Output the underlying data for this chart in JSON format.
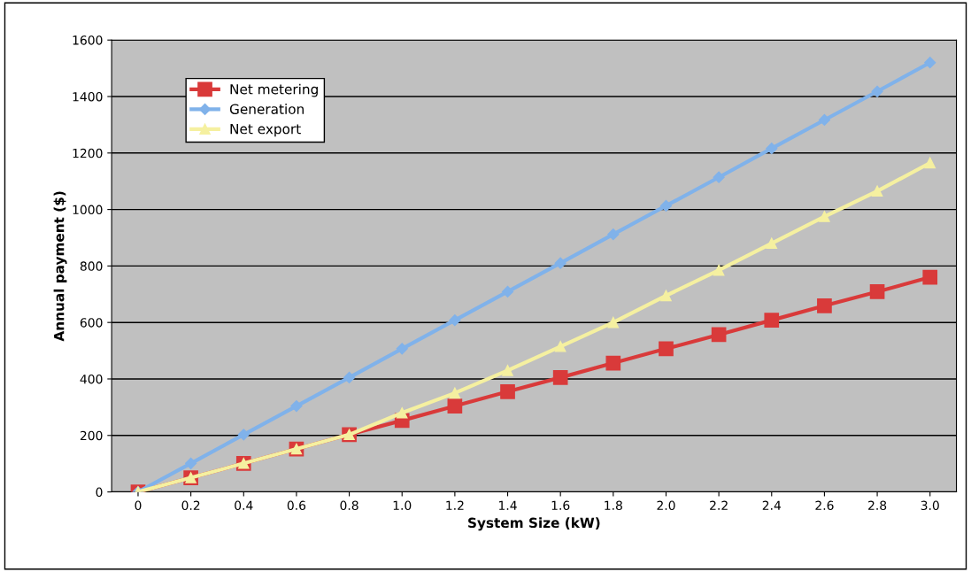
{
  "chart_data": {
    "type": "line",
    "xlabel": "System Size (kW)",
    "ylabel": "Annual payment ($)",
    "categories": [
      "0",
      "0.2",
      "0.4",
      "0.6",
      "0.8",
      "1.0",
      "1.2",
      "1.4",
      "1.6",
      "1.8",
      "2.0",
      "2.2",
      "2.4",
      "2.6",
      "2.8",
      "3.0"
    ],
    "series": [
      {
        "name": "Net metering",
        "color": "#d93a3a",
        "marker": "square",
        "values": [
          0,
          50,
          101,
          152,
          203,
          253,
          304,
          355,
          405,
          456,
          507,
          557,
          608,
          659,
          709,
          760
        ]
      },
      {
        "name": "Generation",
        "color": "#80b2ea",
        "marker": "diamond",
        "values": [
          0,
          101,
          203,
          304,
          405,
          507,
          608,
          709,
          810,
          912,
          1013,
          1114,
          1216,
          1317,
          1418,
          1520
        ]
      },
      {
        "name": "Net export",
        "color": "#f5f0a0",
        "marker": "triangle",
        "values": [
          0,
          50,
          101,
          152,
          203,
          280,
          350,
          430,
          515,
          600,
          695,
          785,
          880,
          975,
          1065,
          1165
        ]
      }
    ],
    "ylim": [
      0,
      1600
    ],
    "yticks": [
      0,
      200,
      400,
      600,
      800,
      1000,
      1200,
      1400,
      1600
    ],
    "grid": "y",
    "legend": "top left",
    "line_style": "solid"
  }
}
